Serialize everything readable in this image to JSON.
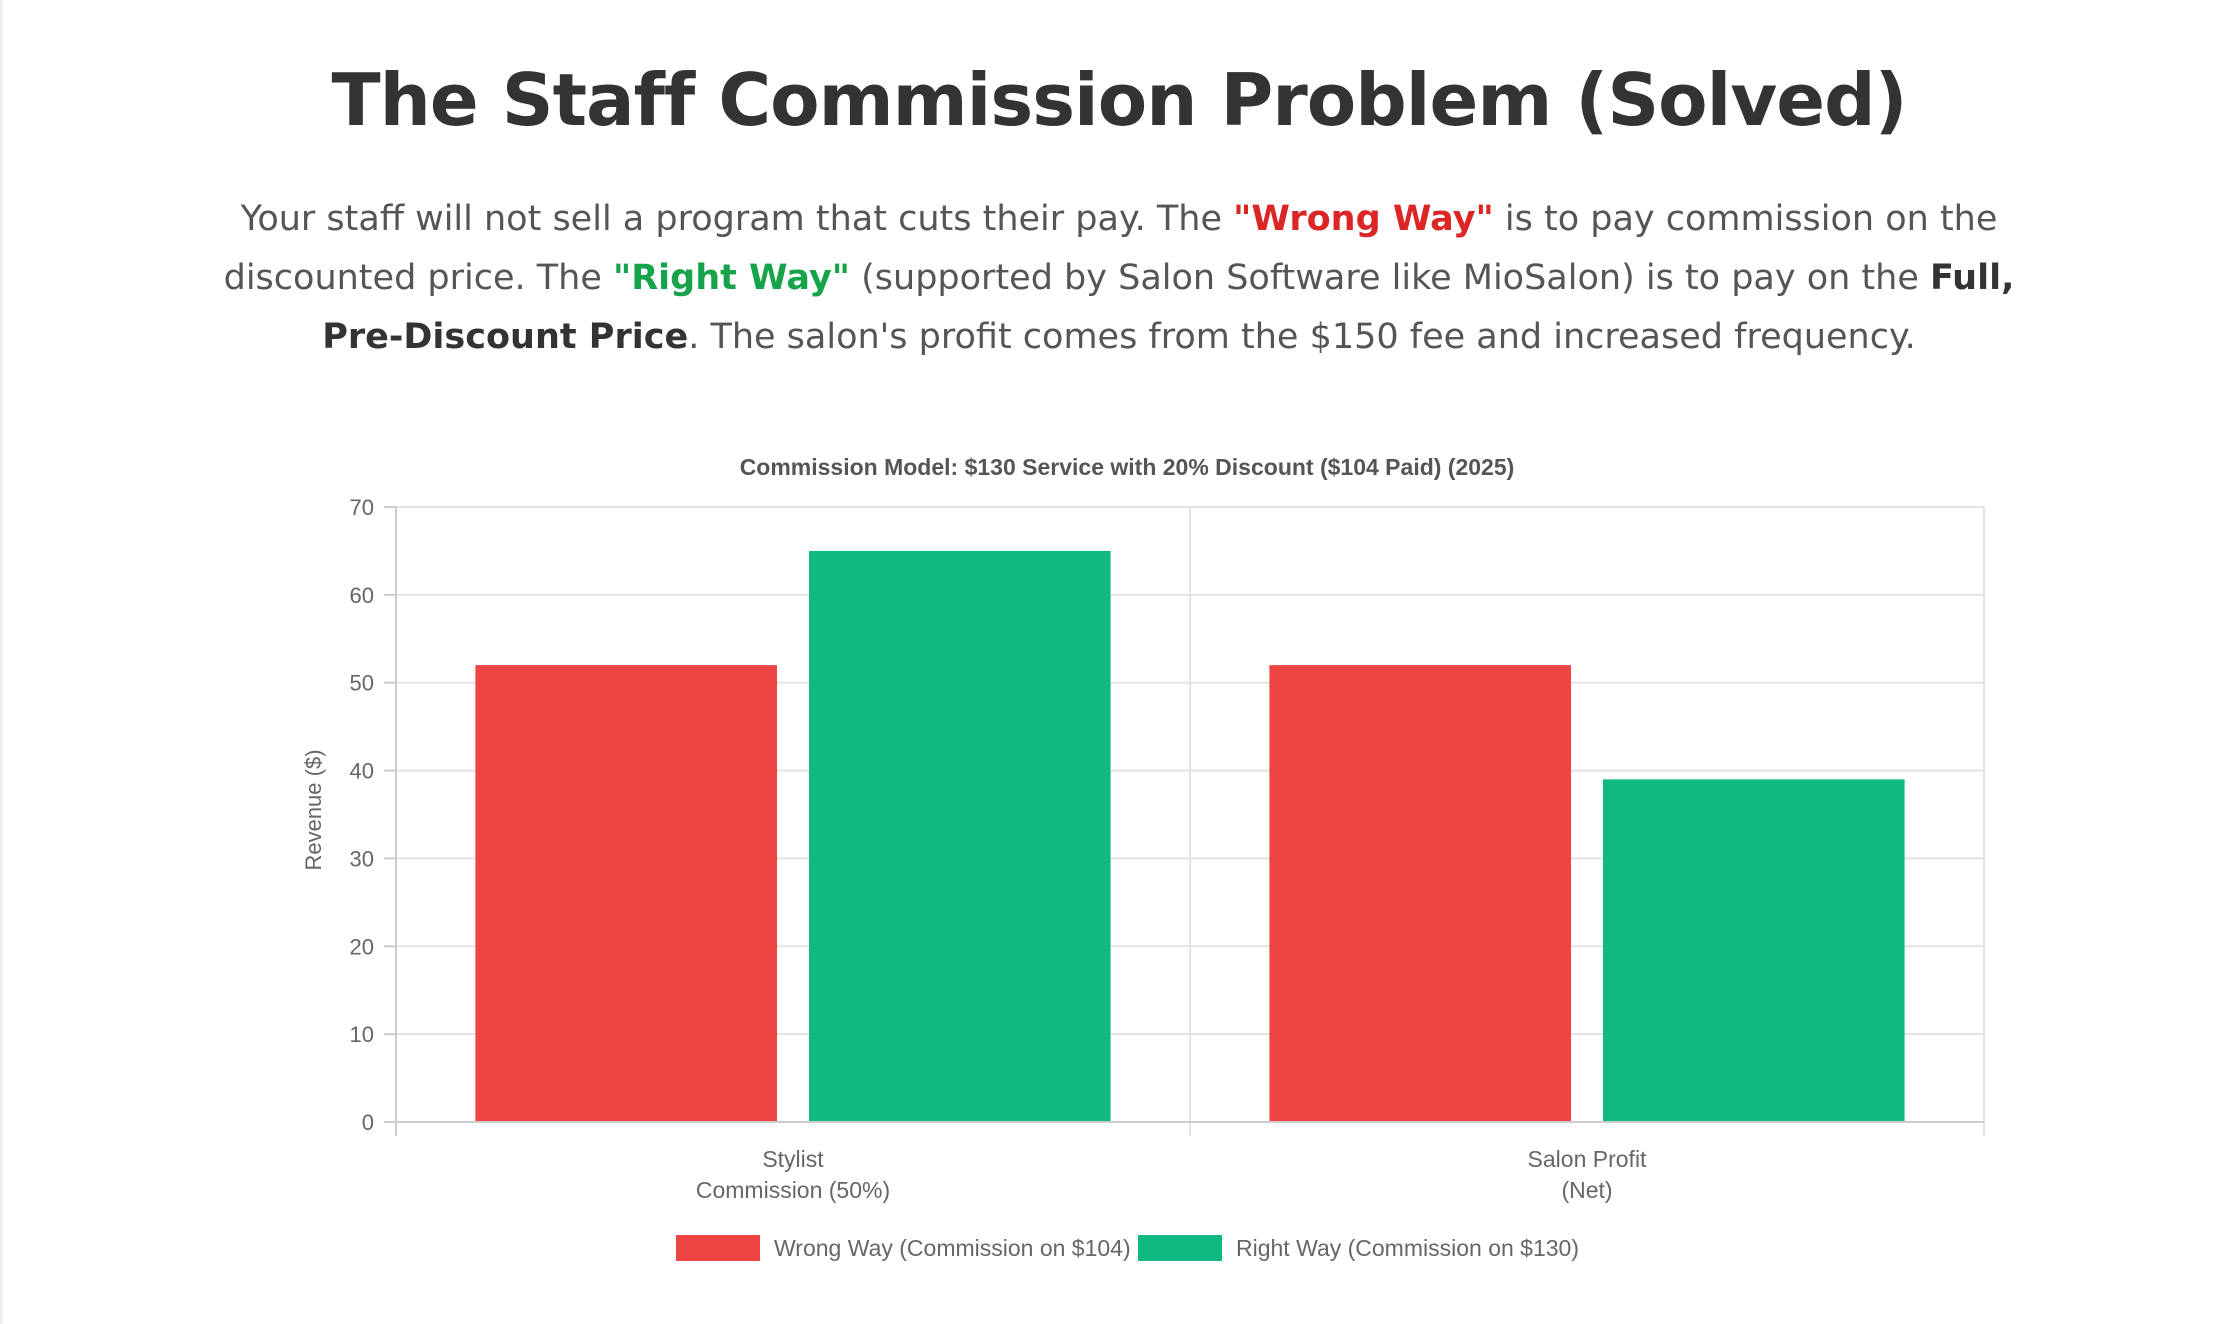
{
  "page": {
    "title": "The Staff Commission Problem (Solved)",
    "intro": {
      "part1": "Your staff will not sell a program that cuts their pay. The ",
      "wrong": "\"Wrong Way\"",
      "part2": " is to pay commission on the discounted price. The ",
      "right": "\"Right Way\"",
      "part3": " (supported by Salon Software like MioSalon) is to pay on the ",
      "strong": "Full, Pre-Discount Price",
      "part4": ". The salon's profit comes from the $150 fee and increased frequency."
    }
  },
  "chart_data": {
    "type": "bar",
    "title": "Commission Model: $130 Service with 20% Discount ($104 Paid) (2025)",
    "ylabel": "Revenue ($)",
    "xlabel": "",
    "ylim": [
      0,
      70
    ],
    "yticks": [
      0,
      10,
      20,
      30,
      40,
      50,
      60,
      70
    ],
    "grid": true,
    "legend_position": "bottom",
    "categories": [
      [
        "Stylist",
        "Commission (50%)"
      ],
      [
        "Salon Profit",
        "(Net)"
      ]
    ],
    "series": [
      {
        "name": "Wrong Way (Commission on $104)",
        "color": "#ef4444",
        "values": [
          52,
          52
        ]
      },
      {
        "name": "Right Way (Commission on $130)",
        "color": "#10b981",
        "values": [
          65,
          39
        ]
      }
    ]
  }
}
